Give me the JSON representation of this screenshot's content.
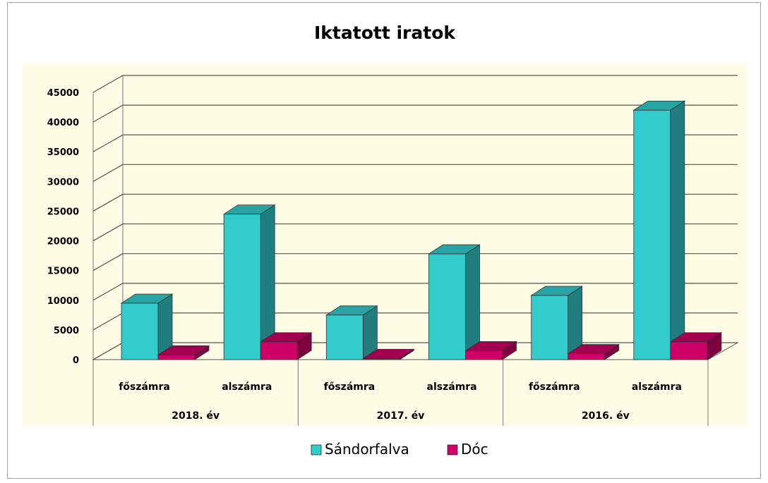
{
  "chart_data": {
    "type": "bar",
    "title": "Iktatott iratok",
    "groups": [
      {
        "label": "2018. év",
        "categories": [
          "főszámra",
          "alszámra"
        ]
      },
      {
        "label": "2017. év",
        "categories": [
          "főszámra",
          "alszámra"
        ]
      },
      {
        "label": "2016. év",
        "categories": [
          "főszámra",
          "alszámra"
        ]
      }
    ],
    "categories": [
      "főszámra",
      "alszámra",
      "főszámra",
      "alszámra",
      "főszámra",
      "alszámra"
    ],
    "series": [
      {
        "name": "Sándorfalva",
        "color": "#33cccc",
        "values": [
          9500,
          24500,
          7500,
          17800,
          10800,
          42000
        ]
      },
      {
        "name": "Dóc",
        "color": "#cc0066",
        "values": [
          800,
          3000,
          200,
          1500,
          1000,
          3000
        ]
      }
    ],
    "ylim": [
      0,
      45000
    ],
    "yticks": [
      0,
      5000,
      10000,
      15000,
      20000,
      25000,
      30000,
      35000,
      40000,
      45000
    ],
    "xlabel": "",
    "ylabel": "",
    "grid": true,
    "legend_position": "bottom",
    "colors": {
      "plot_background": "#fefde6",
      "grid": "#555555"
    }
  }
}
